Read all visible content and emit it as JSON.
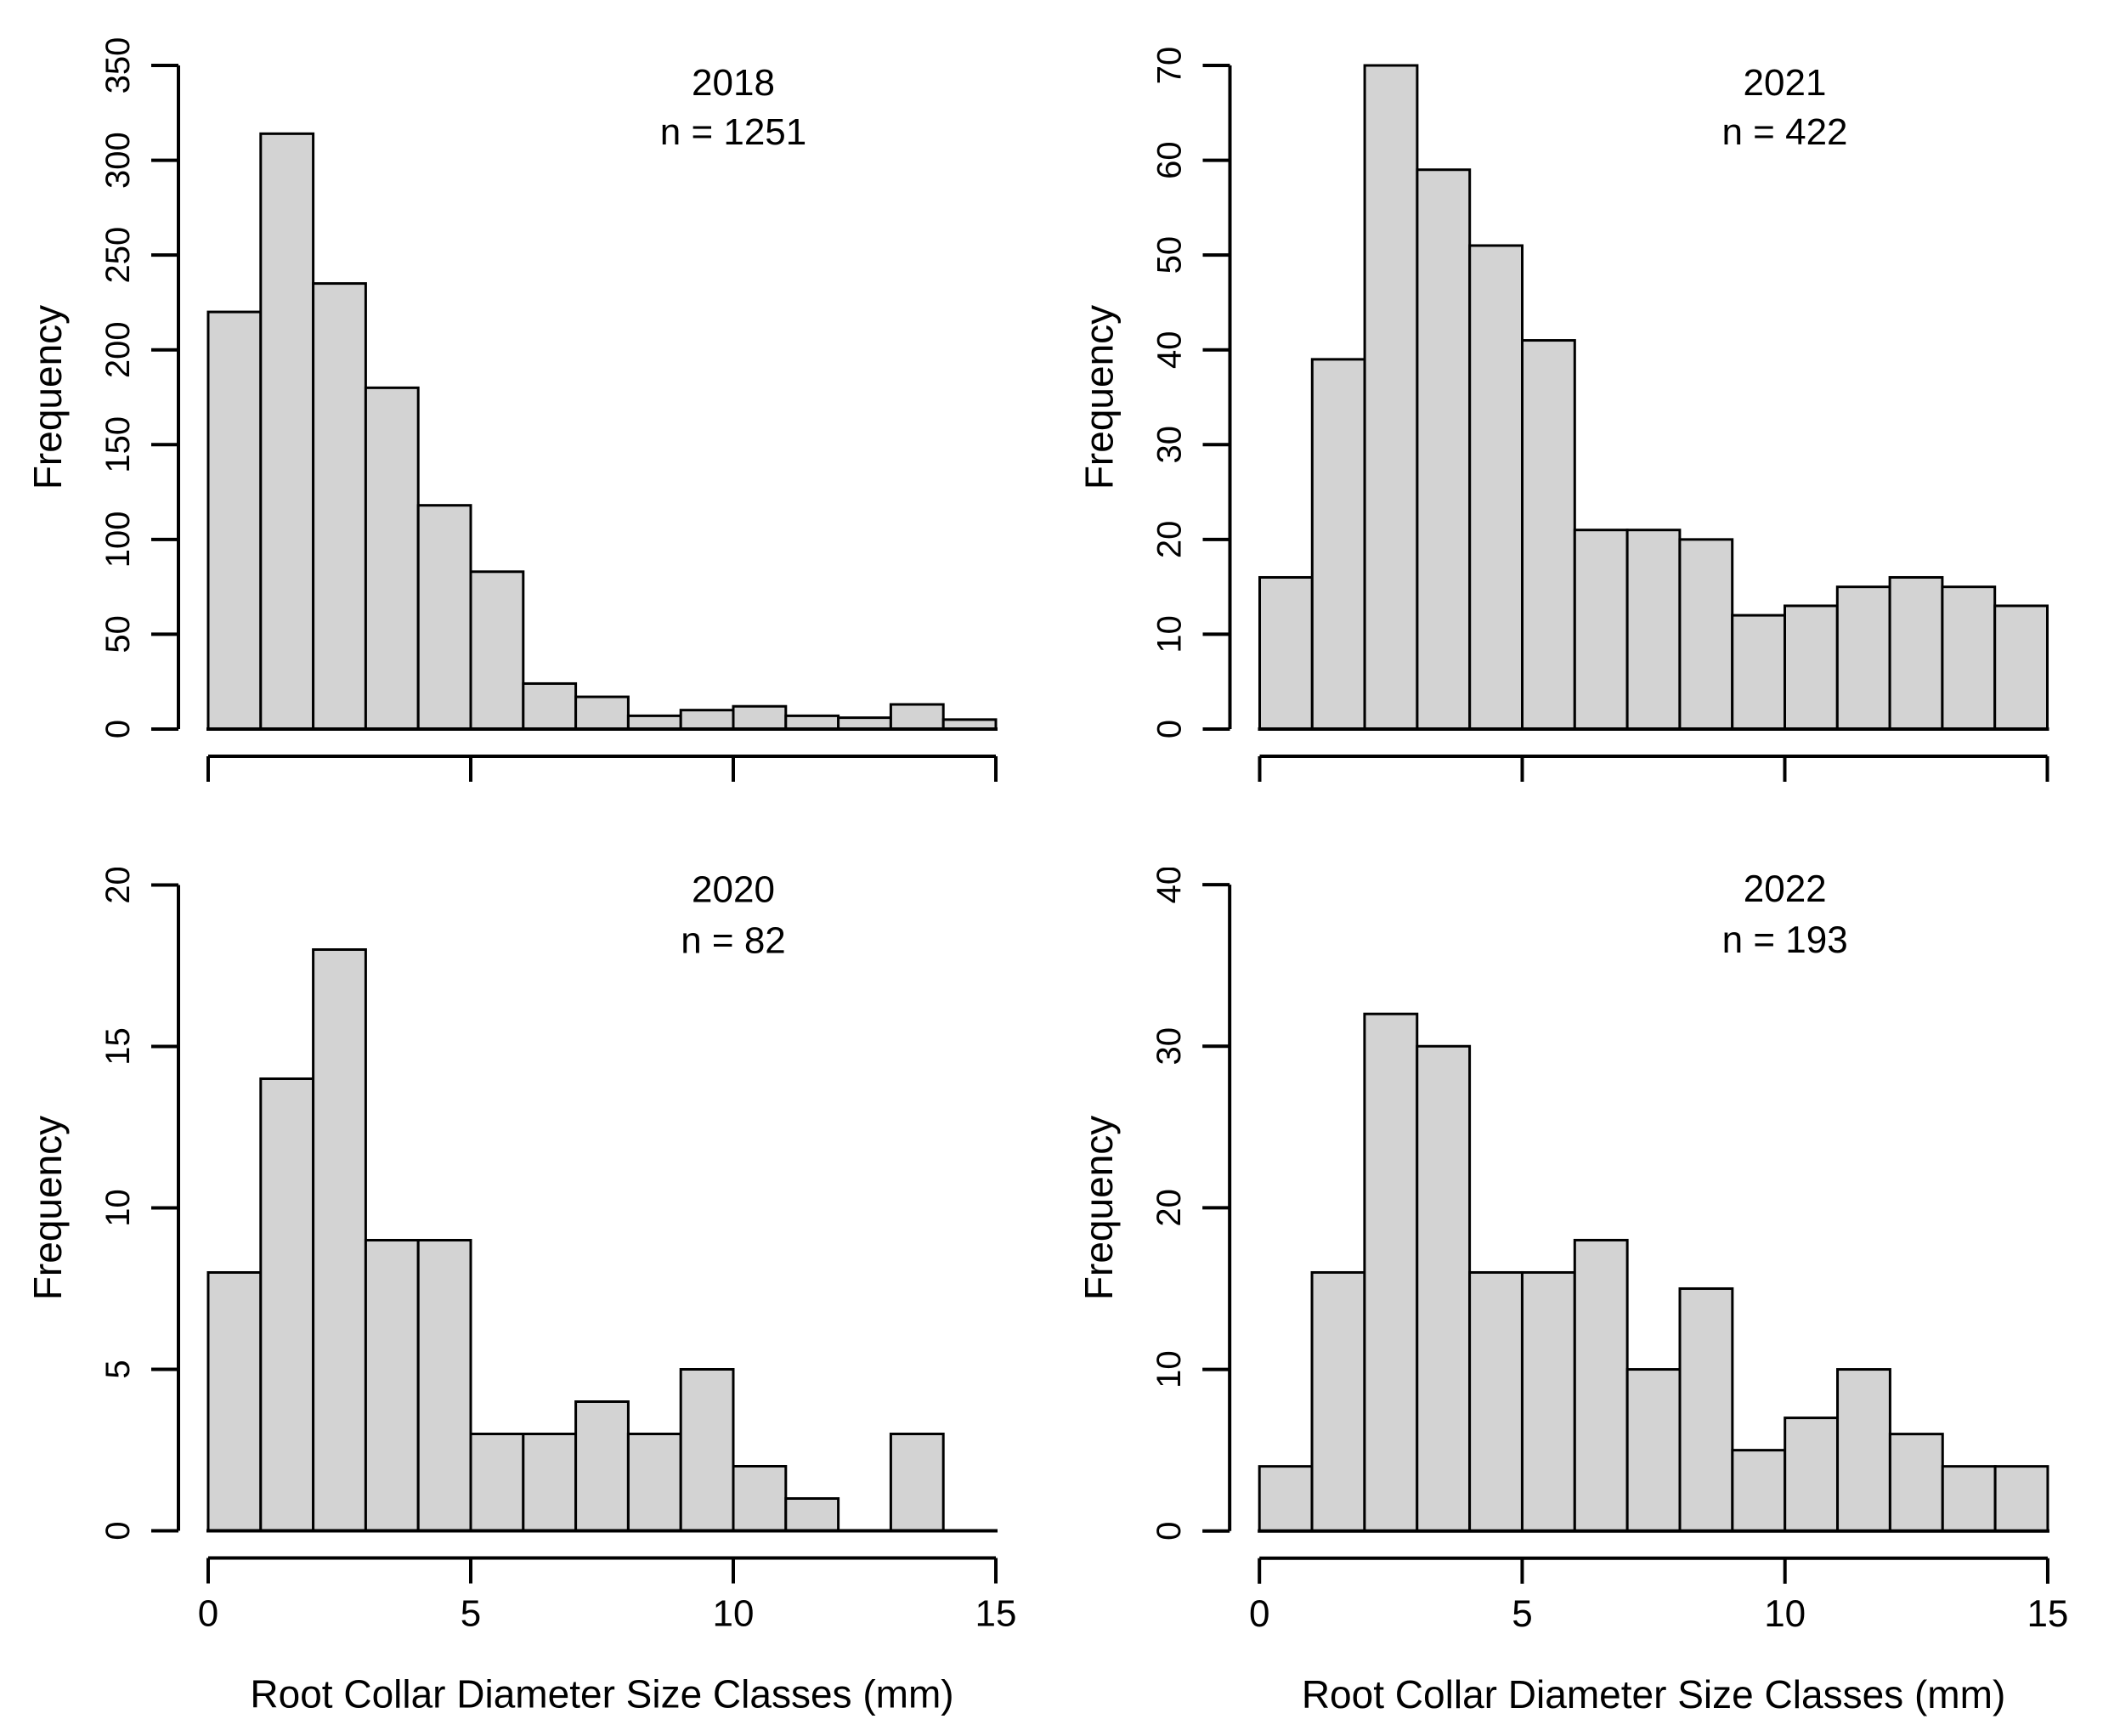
{
  "figure": {
    "background": "#ffffff",
    "bar_fill": "#d3d3d3",
    "bar_stroke": "#000000",
    "axis_color": "#000000",
    "ylabel": "Frequency",
    "xlabel": "Root Collar Diameter Size Classes (mm)",
    "x_ticks": [
      0,
      5,
      10,
      15
    ],
    "xlim": [
      0,
      15
    ]
  },
  "chart_data": [
    {
      "type": "bar",
      "title": "2018",
      "annotation": "n = 1251",
      "grid_position": "top-left",
      "row": "top",
      "bin_start": 0,
      "bin_width": 1,
      "values": [
        220,
        314,
        235,
        180,
        118,
        83,
        24,
        17,
        7,
        10,
        12,
        7,
        6,
        13,
        5
      ],
      "xlim": [
        0,
        15
      ],
      "ylim": [
        0,
        350
      ],
      "y_ticks": [
        0,
        50,
        100,
        150,
        200,
        250,
        300,
        350
      ],
      "ylabel": "Frequency",
      "show_x_tick_labels": false,
      "show_xlabel": false,
      "grid": false
    },
    {
      "type": "bar",
      "title": "2021",
      "annotation": "n = 422",
      "grid_position": "top-right",
      "row": "top",
      "bin_start": 0,
      "bin_width": 1,
      "values": [
        16,
        39,
        70,
        59,
        51,
        41,
        21,
        21,
        20,
        12,
        13,
        15,
        16,
        15,
        13
      ],
      "xlim": [
        0,
        15
      ],
      "ylim": [
        0,
        70
      ],
      "y_ticks": [
        0,
        10,
        20,
        30,
        40,
        50,
        60,
        70
      ],
      "ylabel": "Frequency",
      "show_x_tick_labels": false,
      "show_xlabel": false,
      "grid": false
    },
    {
      "type": "bar",
      "title": "2020",
      "annotation": "n = 82",
      "grid_position": "bottom-left",
      "row": "bottom",
      "bin_start": 0,
      "bin_width": 1,
      "values": [
        8,
        14,
        18,
        9,
        9,
        3,
        3,
        4,
        3,
        5,
        2,
        1,
        0,
        3
      ],
      "xlim": [
        0,
        15
      ],
      "ylim": [
        0,
        20
      ],
      "y_ticks": [
        0,
        5,
        10,
        15,
        20
      ],
      "ylabel": "Frequency",
      "show_x_tick_labels": true,
      "show_xlabel": true,
      "grid": false
    },
    {
      "type": "bar",
      "title": "2022",
      "annotation": "n = 193",
      "grid_position": "bottom-right",
      "row": "bottom",
      "bin_start": 0,
      "bin_width": 1,
      "values": [
        4,
        16,
        32,
        30,
        16,
        16,
        18,
        10,
        15,
        5,
        7,
        10,
        6,
        4,
        4
      ],
      "xlim": [
        0,
        15
      ],
      "ylim": [
        0,
        40
      ],
      "y_ticks": [
        0,
        10,
        20,
        30,
        40
      ],
      "ylabel": "Frequency",
      "show_x_tick_labels": true,
      "show_xlabel": true,
      "grid": false
    }
  ]
}
